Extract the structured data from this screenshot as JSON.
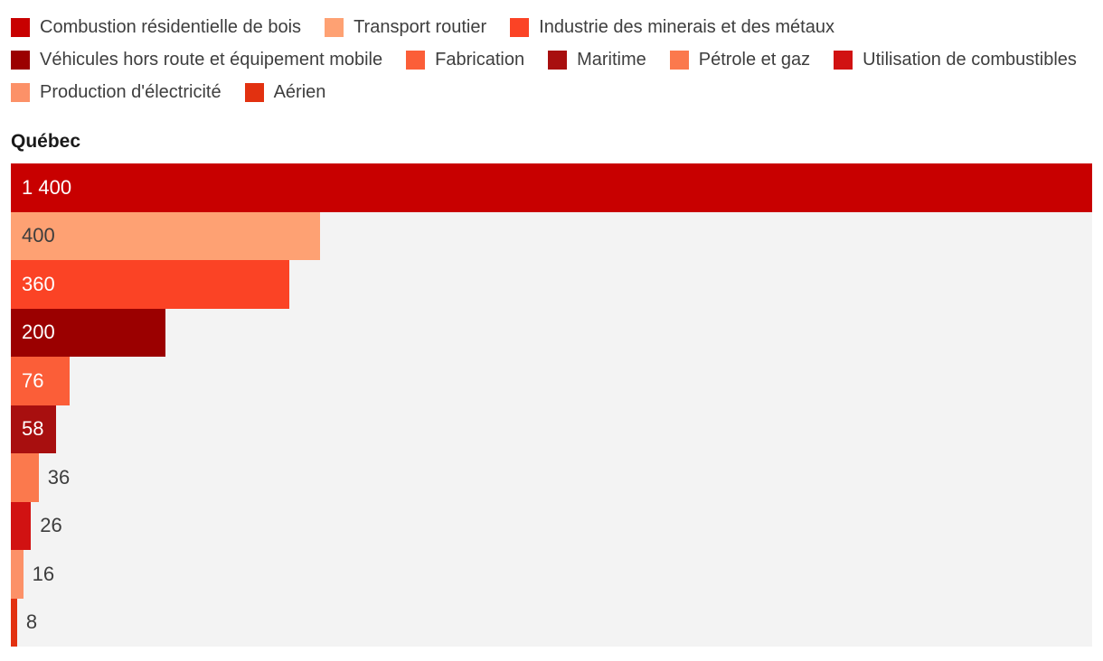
{
  "chart_data": {
    "type": "bar",
    "orientation": "horizontal",
    "title": "Québec",
    "xlim": [
      0,
      1400
    ],
    "grid": false,
    "legend_position": "top",
    "plot_background": "#f3f3f3",
    "text_color": "#3e3e3e",
    "series": [
      {
        "name": "Combustion résidentielle de bois",
        "value": 1400,
        "label": "1 400",
        "color": "#c80000",
        "label_inside": true,
        "label_color": "#ffffff"
      },
      {
        "name": "Transport routier",
        "value": 400,
        "label": "400",
        "color": "#fea173",
        "label_inside": true,
        "label_color": "#3d3d3d"
      },
      {
        "name": "Industrie des minerais et des métaux",
        "value": 360,
        "label": "360",
        "color": "#fb4325",
        "label_inside": true,
        "label_color": "#ffffff"
      },
      {
        "name": "Véhicules hors route et équipement mobile",
        "value": 200,
        "label": "200",
        "color": "#9b0000",
        "label_inside": true,
        "label_color": "#ffffff"
      },
      {
        "name": "Fabrication",
        "value": 76,
        "label": "76",
        "color": "#fb5e38",
        "label_inside": true,
        "label_color": "#ffffff"
      },
      {
        "name": "Maritime",
        "value": 58,
        "label": "58",
        "color": "#a80f0f",
        "label_inside": true,
        "label_color": "#ffffff"
      },
      {
        "name": "Pétrole et gaz",
        "value": 36,
        "label": "36",
        "color": "#fb794d",
        "label_inside": false,
        "label_color": "#3d3d3d"
      },
      {
        "name": "Utilisation de combustibles",
        "value": 26,
        "label": "26",
        "color": "#d11212",
        "label_inside": false,
        "label_color": "#3d3d3d"
      },
      {
        "name": "Production d'électricité",
        "value": 16,
        "label": "16",
        "color": "#fc9168",
        "label_inside": false,
        "label_color": "#3d3d3d"
      },
      {
        "name": "Aérien",
        "value": 8,
        "label": "8",
        "color": "#e23110",
        "label_inside": false,
        "label_color": "#3d3d3d"
      }
    ]
  }
}
